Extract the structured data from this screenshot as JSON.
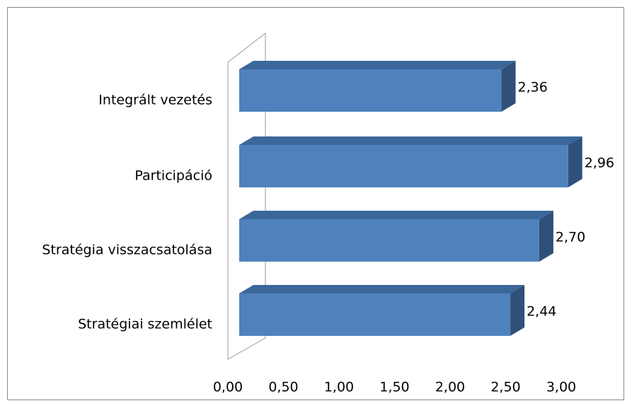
{
  "chart_data": {
    "type": "bar3d_horizontal",
    "categories": [
      "Integrált vezetés",
      "Participáció",
      "Stratégia visszacsatolása",
      "Stratégiai szemlélet"
    ],
    "values": [
      2.36,
      2.96,
      2.7,
      2.44
    ],
    "value_labels": [
      "2,36",
      "2,96",
      "2,70",
      "2,44"
    ],
    "color": "#4f81bd",
    "xlim": [
      0,
      3
    ],
    "xticks": [
      {
        "value": 0,
        "label": "0,00"
      },
      {
        "value": 0.5,
        "label": "0,50"
      },
      {
        "value": 1,
        "label": "1,00"
      },
      {
        "value": 1.5,
        "label": "1,50"
      },
      {
        "value": 2,
        "label": "2,00"
      },
      {
        "value": 2.5,
        "label": "2,50"
      },
      {
        "value": 3,
        "label": "3,00"
      }
    ]
  }
}
